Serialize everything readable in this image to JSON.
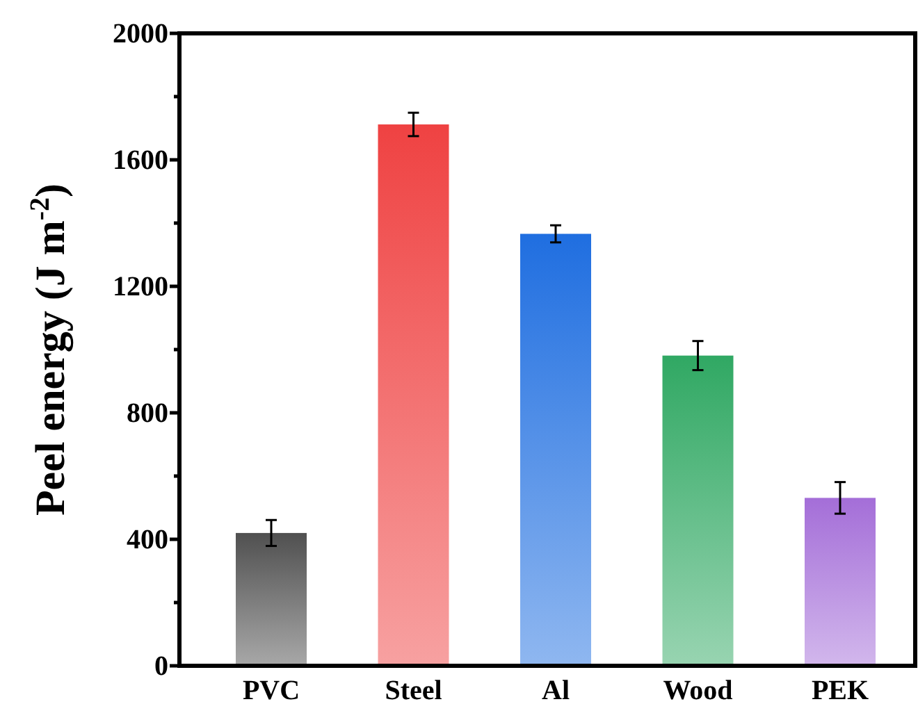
{
  "chart_data": {
    "type": "bar",
    "ylabel": "Peel energy (J m$^{-2}$)",
    "categories": [
      "PVC",
      "Steel",
      "Al",
      "Wood",
      "PEK"
    ],
    "values": [
      420,
      1712,
      1366,
      981,
      531
    ],
    "errors": [
      41,
      37,
      27,
      46,
      50
    ],
    "colors": [
      "#505050",
      "#ef4242",
      "#1f6ee0",
      "#30a863",
      "#a46ed8"
    ],
    "ylim": [
      0,
      2000
    ],
    "yticks": [
      0,
      {
        "value": 200,
        "label": null
      },
      400,
      {
        "value": 600,
        "label": null
      },
      800,
      {
        "value": 1000,
        "label": null
      },
      1200,
      {
        "value": 1400,
        "label": null
      },
      1600,
      {
        "value": 1800,
        "label": null
      },
      2000
    ],
    "grid": false
  }
}
